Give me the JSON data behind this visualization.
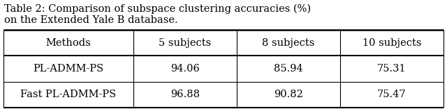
{
  "caption_line1": "Table 2: Comparison of subspace clustering accuracies (%)",
  "caption_line2": "on the Extended Yale B database.",
  "headers": [
    "Methods",
    "5 subjects",
    "8 subjects",
    "10 subjects"
  ],
  "rows": [
    [
      "PL-ADMM-PS",
      "94.06",
      "85.94",
      "75.31"
    ],
    [
      "Fast PL-ADMM-PS",
      "96.88",
      "90.82",
      "75.47"
    ]
  ],
  "bg_color": "#ffffff",
  "text_color": "#000000",
  "caption_fontsize": 10.5,
  "table_fontsize": 10.5,
  "figsize": [
    6.4,
    1.57
  ],
  "dpi": 100
}
